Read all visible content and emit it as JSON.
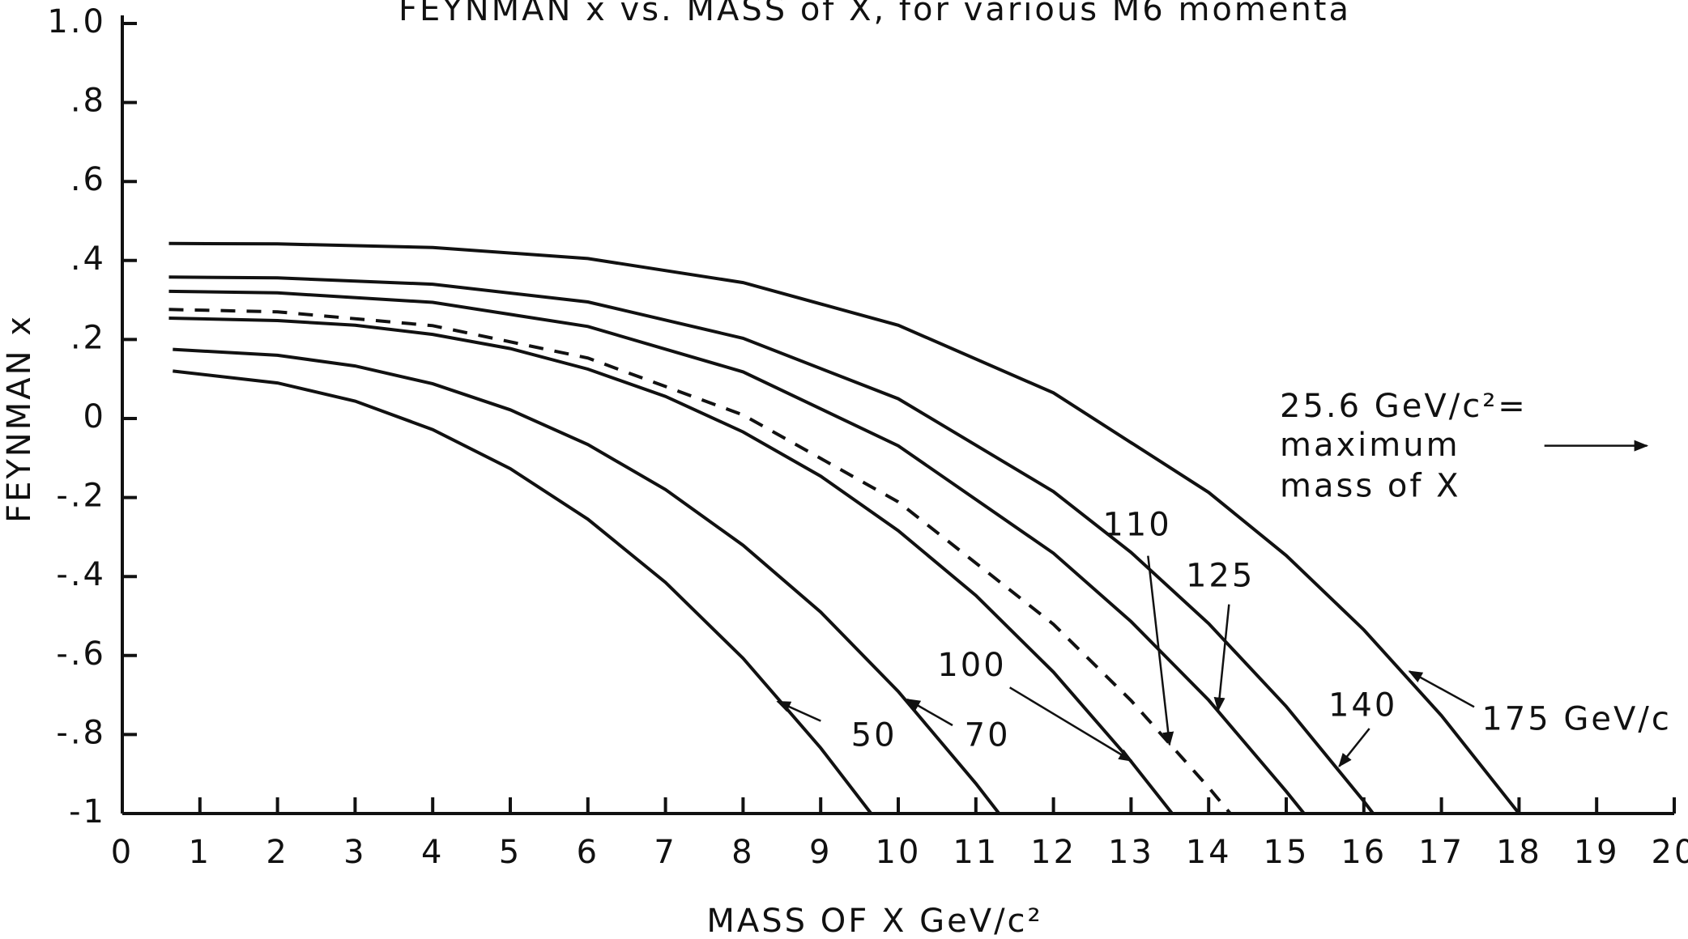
{
  "chart_data": {
    "type": "line",
    "title": "FEYNMAN x   vs.  MASS of X, for various M6 momenta",
    "x_label": "MASS OF X   GeV/c²",
    "y_label": "FEYNMAN x",
    "annotation": [
      "25.6 GeV/c²=",
      "maximum",
      "mass of X"
    ],
    "xlim": [
      0,
      20
    ],
    "ylim": [
      -1,
      1
    ],
    "xticks": [
      0,
      1,
      2,
      3,
      4,
      5,
      6,
      7,
      8,
      9,
      10,
      11,
      12,
      13,
      14,
      15,
      16,
      17,
      18,
      19,
      20
    ],
    "yticks": [
      {
        "value": 1,
        "label": "1.0"
      },
      {
        "value": 0.8,
        "label": ".8"
      },
      {
        "value": 0.6,
        "label": ".6"
      },
      {
        "value": 0.4,
        "label": ".4"
      },
      {
        "value": 0.2,
        "label": ".2"
      },
      0,
      {
        "value": -0.2,
        "label": "-.2"
      },
      {
        "value": -0.4,
        "label": "-.4"
      },
      {
        "value": -0.6,
        "label": "-.6"
      },
      {
        "value": -0.8,
        "label": "-.8"
      },
      -1
    ],
    "series": [
      {
        "name": "50",
        "color": "#111111",
        "style": "solid",
        "x": [
          0.65,
          2,
          3,
          4,
          5,
          6,
          7,
          8,
          9,
          9.65
        ],
        "values": [
          0.12,
          0.09,
          0.044,
          -0.028,
          -0.127,
          -0.255,
          -0.415,
          -0.607,
          -0.834,
          -1
        ]
      },
      {
        "name": "70",
        "color": "#111111",
        "style": "solid",
        "x": [
          0.65,
          2,
          3,
          4,
          5,
          6,
          7,
          8,
          9,
          10,
          11,
          11.3
        ],
        "values": [
          0.175,
          0.16,
          0.133,
          0.088,
          0.022,
          -0.066,
          -0.18,
          -0.321,
          -0.49,
          -0.691,
          -0.924,
          -1
        ]
      },
      {
        "name": "100",
        "color": "#111111",
        "style": "solid",
        "x": [
          0.6,
          2,
          3,
          4,
          5,
          6,
          7,
          8,
          9,
          10,
          11,
          12,
          13,
          13.53
        ],
        "values": [
          0.254,
          0.248,
          0.236,
          0.213,
          0.177,
          0.125,
          0.056,
          -0.034,
          -0.146,
          -0.284,
          -0.448,
          -0.642,
          -0.868,
          -1
        ]
      },
      {
        "name": "110",
        "color": "#111111",
        "style": "dashed",
        "x": [
          0.6,
          2,
          4,
          6,
          8,
          10,
          12,
          13,
          14,
          14.28
        ],
        "values": [
          0.276,
          0.27,
          0.235,
          0.153,
          0.009,
          -0.211,
          -0.521,
          -0.714,
          -0.934,
          -1
        ]
      },
      {
        "name": "125",
        "color": "#111111",
        "style": "solid",
        "x": [
          0.6,
          2,
          4,
          6,
          8,
          10,
          12,
          13,
          14,
          15,
          15.23
        ],
        "values": [
          0.322,
          0.318,
          0.294,
          0.233,
          0.118,
          -0.069,
          -0.341,
          -0.514,
          -0.713,
          -0.944,
          -1
        ]
      },
      {
        "name": "140",
        "color": "#111111",
        "style": "solid",
        "x": [
          0.6,
          2,
          4,
          6,
          8,
          10,
          12,
          13,
          14,
          15,
          16,
          16.12
        ],
        "values": [
          0.358,
          0.356,
          0.34,
          0.295,
          0.203,
          0.05,
          -0.185,
          -0.339,
          -0.519,
          -0.729,
          -0.969,
          -1
        ]
      },
      {
        "name": "175 GeV/c",
        "color": "#111111",
        "style": "solid",
        "x": [
          0.6,
          2,
          4,
          6,
          8,
          10,
          12,
          14,
          15,
          16,
          17,
          18
        ],
        "values": [
          0.443,
          0.442,
          0.433,
          0.405,
          0.344,
          0.236,
          0.065,
          -0.187,
          -0.347,
          -0.535,
          -0.752,
          -1
        ]
      }
    ]
  }
}
